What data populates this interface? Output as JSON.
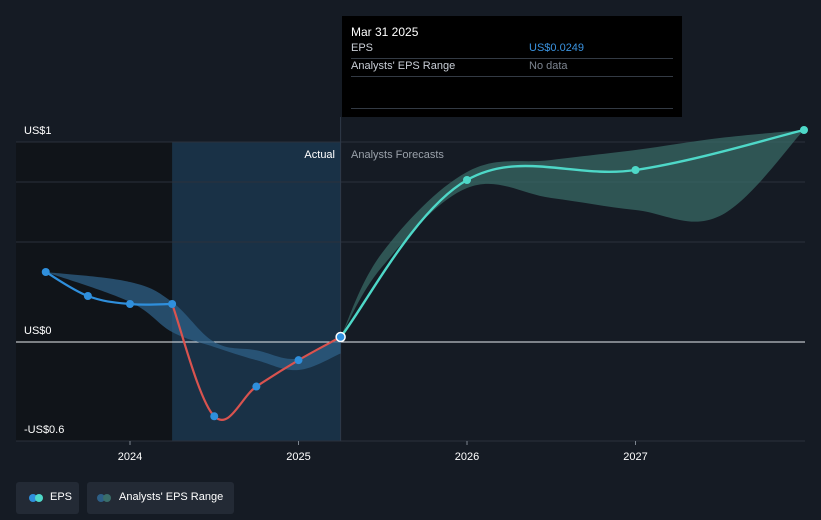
{
  "colors": {
    "background": "#151b24",
    "actual_band": "#1b3a52",
    "past_band": "#101419",
    "eps_positive": "#4ed8c8",
    "eps_negative": "#d9534f",
    "eps_actual": "#2f8fdc",
    "range_actual": "#2d5f86",
    "range_forecast": "#3a6e6a",
    "tooltip_value": "#3a93e0",
    "tooltip_muted": "#7d8590"
  },
  "tooltip": {
    "date": "Mar 31 2025",
    "eps_label": "EPS",
    "eps_value": "US$0.0249",
    "range_label": "Analysts' EPS Range",
    "range_value": "No data"
  },
  "section_labels": {
    "actual": "Actual",
    "forecast": "Analysts Forecasts"
  },
  "legend": {
    "eps": "EPS",
    "range": "Analysts' EPS Range"
  },
  "chart_data": {
    "type": "line",
    "y_labels": [
      {
        "value": 1.0,
        "text": "US$1"
      },
      {
        "value": 0.0,
        "text": "US$0"
      },
      {
        "value": -0.6,
        "text": "-US$0.6"
      }
    ],
    "x_ticks": [
      {
        "value": 2024.0,
        "text": "2024"
      },
      {
        "value": 2025.0,
        "text": "2025"
      },
      {
        "value": 2026.0,
        "text": "2026"
      },
      {
        "value": 2027.0,
        "text": "2027"
      }
    ],
    "xlim": [
      2023.3,
      2028.0
    ],
    "ylim": [
      -0.6,
      1.0
    ],
    "grid_values": [
      1.0,
      0.8,
      0.5,
      0.0,
      -0.6
    ],
    "actual_band": [
      2024.25,
      2025.25
    ],
    "eps_actual": [
      {
        "x": 2023.5,
        "y": 0.35
      },
      {
        "x": 2023.75,
        "y": 0.23
      },
      {
        "x": 2024.0,
        "y": 0.19
      },
      {
        "x": 2024.25,
        "y": 0.19
      },
      {
        "x": 2024.5,
        "y": -0.45
      },
      {
        "x": 2024.75,
        "y": -0.27
      },
      {
        "x": 2025.0,
        "y": -0.11
      },
      {
        "x": 2025.25,
        "y": 0.0249
      }
    ],
    "eps_forecast": [
      {
        "x": 2025.25,
        "y": 0.0249
      },
      {
        "x": 2026.0,
        "y": 0.81
      },
      {
        "x": 2027.0,
        "y": 0.86
      },
      {
        "x": 2028.0,
        "y": 1.06
      }
    ],
    "range_actual": [
      {
        "x": 2023.5,
        "low": 0.35,
        "high": 0.35
      },
      {
        "x": 2024.0,
        "low": 0.2,
        "high": 0.3
      },
      {
        "x": 2024.25,
        "low": 0.05,
        "high": 0.2
      },
      {
        "x": 2024.5,
        "low": -0.03,
        "high": 0.0
      },
      {
        "x": 2024.75,
        "low": -0.11,
        "high": -0.05
      },
      {
        "x": 2025.0,
        "low": -0.17,
        "high": -0.1
      },
      {
        "x": 2025.25,
        "low": -0.07,
        "high": 0.03
      }
    ],
    "range_forecast": [
      {
        "x": 2025.25,
        "low": 0.0249,
        "high": 0.0249
      },
      {
        "x": 2025.5,
        "low": 0.38,
        "high": 0.45
      },
      {
        "x": 2026.0,
        "low": 0.77,
        "high": 0.85
      },
      {
        "x": 2026.5,
        "low": 0.72,
        "high": 0.91
      },
      {
        "x": 2027.0,
        "low": 0.66,
        "high": 0.96
      },
      {
        "x": 2027.5,
        "low": 0.63,
        "high": 1.02
      },
      {
        "x": 2028.0,
        "low": 1.06,
        "high": 1.06
      }
    ]
  }
}
